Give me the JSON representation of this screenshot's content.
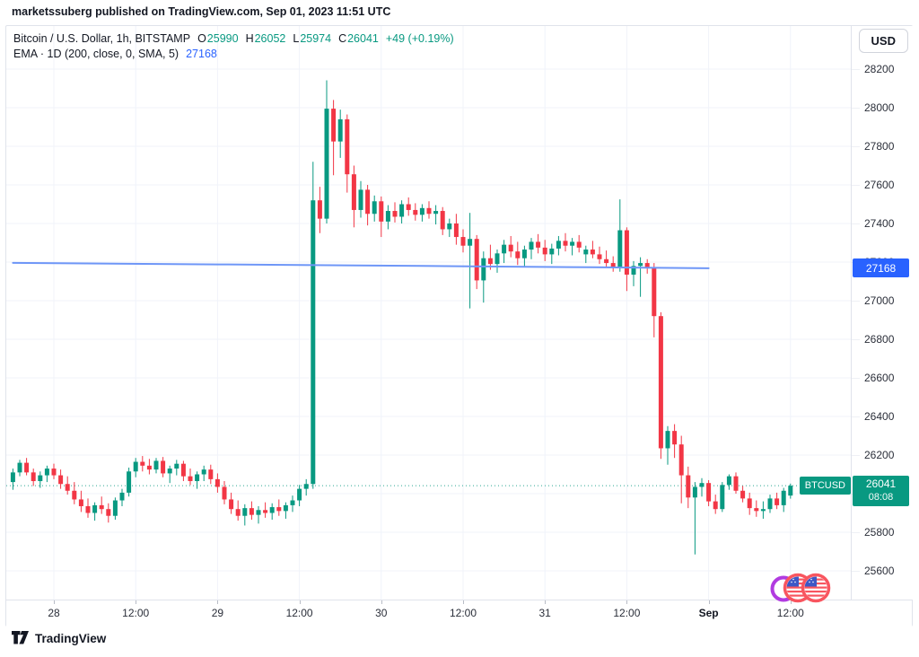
{
  "header": {
    "attribution": "marketssuberg published on TradingView.com, Sep 01, 2023 11:51 UTC"
  },
  "legend": {
    "title": "Bitcoin / U.S. Dollar, 1h, BITSTAMP",
    "ohlc": {
      "o_key": "O",
      "o": "25990",
      "h_key": "H",
      "h": "26052",
      "l_key": "L",
      "l": "25974",
      "c_key": "C",
      "c": "26041",
      "change": "+49 (+0.19%)"
    },
    "indicator": {
      "title": "EMA · 1D (200, close, 0, SMA, 5)",
      "value": "27168"
    }
  },
  "currency_button": "USD",
  "price_scale": {
    "ema_label": "27168",
    "symbol_label": "BTCUSD",
    "last_price_label": "26041",
    "countdown": "08:08"
  },
  "footer": {
    "brand": "TradingView"
  },
  "colors": {
    "up": "#089981",
    "down": "#f23645",
    "ema_line": "#6e96f7",
    "ema_label_bg": "#2962ff",
    "price_label_bg": "#089981",
    "grid": "#f0f3fa",
    "border": "#e0e3eb",
    "text": "#131722",
    "background": "#ffffff",
    "sticker_ring": "#b13be0",
    "sticker_flag_red": "#f8555f",
    "sticker_flag_blue": "#3c57c6"
  },
  "chart_data": {
    "type": "candlestick",
    "symbol": "Bitcoin / U.S. Dollar",
    "ticker": "BTCUSD",
    "exchange": "BITSTAMP",
    "interval": "1h",
    "last_price": 26041,
    "last_candle": {
      "open": 25990,
      "high": 26052,
      "low": 25974,
      "close": 26041,
      "change": "+49",
      "change_pct": "+0.19%"
    },
    "session_high": 28142,
    "session_low": 25685,
    "y_axis": {
      "min": 25450,
      "max": 28320,
      "tick_step": 200,
      "ticks": [
        28200,
        28000,
        27800,
        27600,
        27400,
        27200,
        27000,
        26800,
        26600,
        26400,
        26200,
        26000,
        25800,
        25600
      ]
    },
    "x_ticks": [
      {
        "i": 6,
        "label": "28",
        "bold": false
      },
      {
        "i": 18,
        "label": "12:00",
        "bold": false
      },
      {
        "i": 30,
        "label": "29",
        "bold": false
      },
      {
        "i": 42,
        "label": "12:00",
        "bold": false
      },
      {
        "i": 54,
        "label": "30",
        "bold": false
      },
      {
        "i": 66,
        "label": "12:00",
        "bold": false
      },
      {
        "i": 78,
        "label": "31",
        "bold": false
      },
      {
        "i": 90,
        "label": "12:00",
        "bold": false
      },
      {
        "i": 102,
        "label": "Sep",
        "bold": true
      },
      {
        "i": 114,
        "label": "12:00",
        "bold": false
      }
    ],
    "ema": {
      "name": "EMA · 1D (200, close, 0, SMA, 5)",
      "value": 27168,
      "points": [
        [
          0,
          27196
        ],
        [
          30,
          27188
        ],
        [
          60,
          27180
        ],
        [
          85,
          27173
        ],
        [
          102,
          27168
        ]
      ]
    },
    "candles": [
      [
        26060,
        26130,
        26020,
        26110
      ],
      [
        26110,
        26175,
        26090,
        26160
      ],
      [
        26160,
        26185,
        26095,
        26110
      ],
      [
        26110,
        26130,
        26040,
        26065
      ],
      [
        26065,
        26115,
        26030,
        26095
      ],
      [
        26095,
        26145,
        26060,
        26130
      ],
      [
        26130,
        26155,
        26075,
        26095
      ],
      [
        26095,
        26125,
        26025,
        26050
      ],
      [
        26050,
        26090,
        25995,
        26015
      ],
      [
        26015,
        26060,
        25945,
        25970
      ],
      [
        25970,
        26015,
        25905,
        25935
      ],
      [
        25935,
        25975,
        25875,
        25900
      ],
      [
        25900,
        25955,
        25860,
        25940
      ],
      [
        25940,
        25985,
        25895,
        25920
      ],
      [
        25920,
        25950,
        25850,
        25885
      ],
      [
        25885,
        25980,
        25865,
        25965
      ],
      [
        25965,
        26025,
        25935,
        26005
      ],
      [
        26005,
        26135,
        25985,
        26115
      ],
      [
        26115,
        26185,
        26085,
        26165
      ],
      [
        26165,
        26195,
        26115,
        26145
      ],
      [
        26145,
        26180,
        26100,
        26125
      ],
      [
        26125,
        26185,
        26105,
        26170
      ],
      [
        26170,
        26190,
        26085,
        26105
      ],
      [
        26105,
        26145,
        26055,
        26130
      ],
      [
        26130,
        26175,
        26095,
        26155
      ],
      [
        26155,
        26170,
        26065,
        26090
      ],
      [
        26090,
        26130,
        26045,
        26065
      ],
      [
        26065,
        26115,
        26025,
        26100
      ],
      [
        26100,
        26145,
        26065,
        26125
      ],
      [
        26125,
        26150,
        26050,
        26075
      ],
      [
        26075,
        26105,
        26005,
        26035
      ],
      [
        26035,
        26065,
        25945,
        25970
      ],
      [
        25970,
        26005,
        25895,
        25920
      ],
      [
        25920,
        25965,
        25860,
        25885
      ],
      [
        25885,
        25945,
        25835,
        25925
      ],
      [
        25925,
        25960,
        25865,
        25890
      ],
      [
        25890,
        25935,
        25845,
        25915
      ],
      [
        25915,
        25955,
        25875,
        25900
      ],
      [
        25900,
        25950,
        25865,
        25930
      ],
      [
        25930,
        25970,
        25885,
        25910
      ],
      [
        25910,
        25955,
        25870,
        25940
      ],
      [
        25940,
        25990,
        25905,
        25965
      ],
      [
        25965,
        26045,
        25935,
        26025
      ],
      [
        26025,
        26075,
        25990,
        26050
      ],
      [
        26050,
        27720,
        26025,
        27520
      ],
      [
        27520,
        27590,
        27350,
        27425
      ],
      [
        27425,
        28142,
        27400,
        27995
      ],
      [
        27995,
        28040,
        27650,
        27825
      ],
      [
        27825,
        27990,
        27740,
        27940
      ],
      [
        27940,
        27965,
        27560,
        27655
      ],
      [
        27655,
        27700,
        27380,
        27470
      ],
      [
        27470,
        27620,
        27430,
        27575
      ],
      [
        27575,
        27600,
        27390,
        27450
      ],
      [
        27450,
        27545,
        27410,
        27515
      ],
      [
        27515,
        27540,
        27330,
        27410
      ],
      [
        27410,
        27495,
        27370,
        27465
      ],
      [
        27465,
        27510,
        27405,
        27435
      ],
      [
        27435,
        27520,
        27400,
        27500
      ],
      [
        27500,
        27535,
        27440,
        27470
      ],
      [
        27470,
        27505,
        27415,
        27445
      ],
      [
        27445,
        27500,
        27410,
        27480
      ],
      [
        27480,
        27515,
        27425,
        27450
      ],
      [
        27450,
        27495,
        27395,
        27465
      ],
      [
        27465,
        27485,
        27340,
        27370
      ],
      [
        27370,
        27425,
        27330,
        27400
      ],
      [
        27400,
        27450,
        27290,
        27330
      ],
      [
        27330,
        27370,
        27250,
        27285
      ],
      [
        27285,
        27455,
        26960,
        27320
      ],
      [
        27320,
        27340,
        27060,
        27105
      ],
      [
        27105,
        27255,
        26990,
        27220
      ],
      [
        27220,
        27290,
        27160,
        27190
      ],
      [
        27190,
        27265,
        27145,
        27245
      ],
      [
        27245,
        27315,
        27195,
        27290
      ],
      [
        27290,
        27335,
        27225,
        27255
      ],
      [
        27255,
        27305,
        27185,
        27220
      ],
      [
        27220,
        27285,
        27175,
        27265
      ],
      [
        27265,
        27325,
        27215,
        27305
      ],
      [
        27305,
        27345,
        27245,
        27275
      ],
      [
        27275,
        27315,
        27205,
        27240
      ],
      [
        27240,
        27295,
        27190,
        27270
      ],
      [
        27270,
        27335,
        27235,
        27310
      ],
      [
        27310,
        27350,
        27255,
        27285
      ],
      [
        27285,
        27325,
        27235,
        27305
      ],
      [
        27305,
        27340,
        27250,
        27275
      ],
      [
        27240,
        27285,
        27195,
        27265
      ],
      [
        27265,
        27310,
        27220,
        27240
      ],
      [
        27240,
        27280,
        27190,
        27215
      ],
      [
        27215,
        27260,
        27170,
        27195
      ],
      [
        27195,
        27230,
        27150,
        27175
      ],
      [
        27175,
        27525,
        27150,
        27365
      ],
      [
        27365,
        27380,
        27050,
        27135
      ],
      [
        27135,
        27205,
        27075,
        27180
      ],
      [
        27180,
        27225,
        27020,
        27195
      ],
      [
        27195,
        27215,
        27140,
        27170
      ],
      [
        27170,
        27195,
        26810,
        26920
      ],
      [
        26920,
        26940,
        26180,
        26235
      ],
      [
        26235,
        26350,
        26150,
        26325
      ],
      [
        26325,
        26360,
        26185,
        26255
      ],
      [
        26255,
        26300,
        25950,
        26095
      ],
      [
        26095,
        26140,
        25925,
        25980
      ],
      [
        25980,
        26060,
        25685,
        26035
      ],
      [
        26035,
        26080,
        25985,
        26055
      ],
      [
        26055,
        26070,
        25935,
        25960
      ],
      [
        25960,
        25995,
        25895,
        25920
      ],
      [
        25920,
        26060,
        25905,
        26045
      ],
      [
        26045,
        26100,
        26020,
        26090
      ],
      [
        26090,
        26110,
        26000,
        26015
      ],
      [
        26015,
        26040,
        25955,
        25975
      ],
      [
        25975,
        26005,
        25890,
        25925
      ],
      [
        25925,
        25965,
        25880,
        25910
      ],
      [
        25910,
        25960,
        25870,
        25920
      ],
      [
        25920,
        25995,
        25900,
        25975
      ],
      [
        25975,
        26005,
        25920,
        25940
      ],
      [
        25940,
        26030,
        25905,
        26015
      ],
      [
        25990,
        26052,
        25974,
        26041
      ]
    ]
  }
}
